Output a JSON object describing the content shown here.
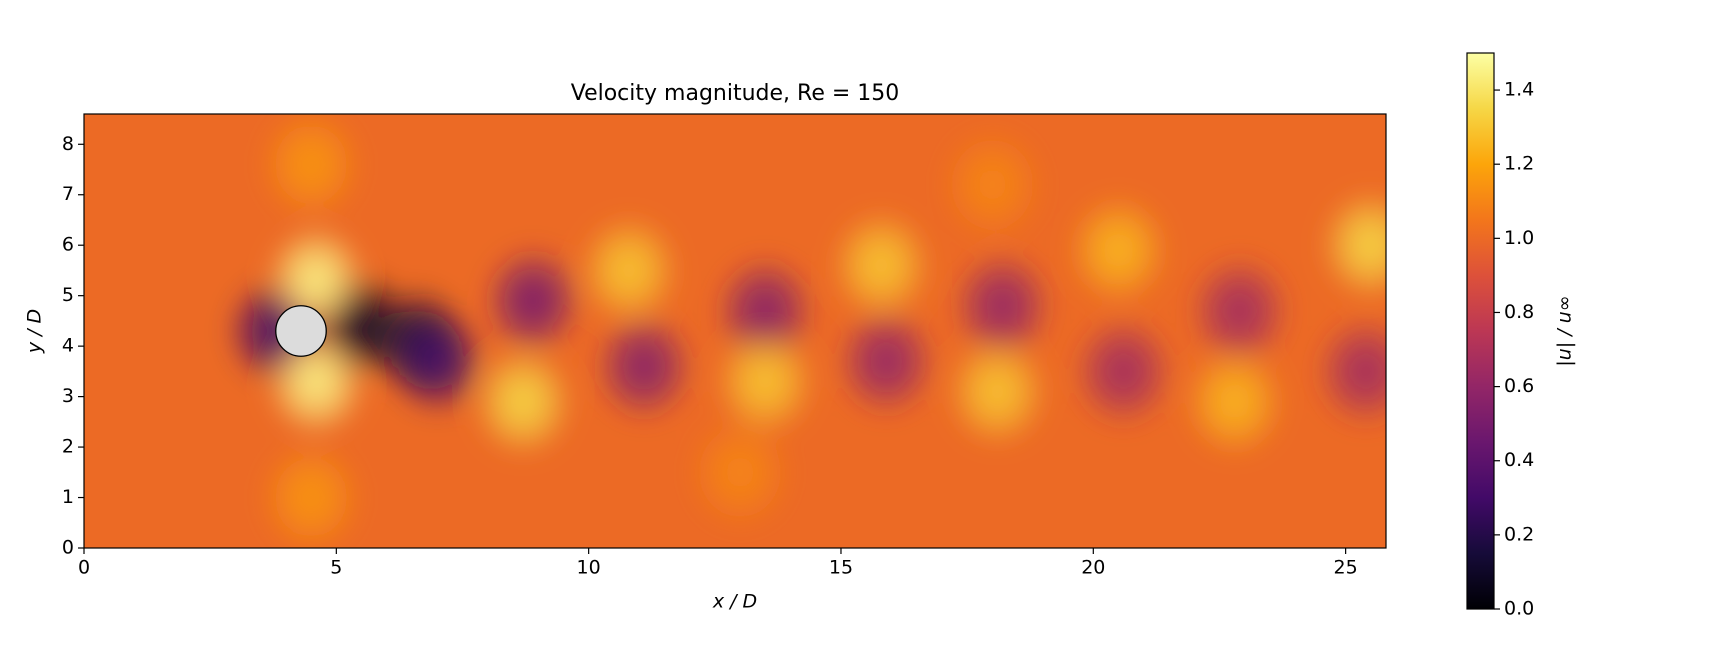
{
  "chart_data": {
    "type": "field",
    "title": "Velocity magnitude, Re = 150",
    "x_label": "x / D",
    "y_label": "y / D",
    "xlim": [
      0,
      25.8
    ],
    "ylim": [
      0,
      8.6
    ],
    "xticks": [
      0,
      5,
      10,
      15,
      20,
      25
    ],
    "yticks": [
      0,
      1,
      2,
      3,
      4,
      5,
      6,
      7,
      8
    ],
    "colormap": "inferno",
    "background_value": 1.0,
    "field": {
      "x": [
        3.8,
        5.5,
        6.6,
        7.0,
        8.9,
        11.1,
        13.5,
        15.9,
        18.2,
        20.6,
        22.9,
        25.4,
        4.6,
        4.6,
        8.7,
        10.8,
        13.5,
        15.8,
        18.1,
        20.5,
        22.8,
        25.5,
        4.5,
        4.5,
        13.0,
        18.0
      ],
      "y": [
        4.3,
        4.4,
        4.1,
        3.7,
        4.9,
        3.6,
        4.7,
        3.7,
        4.8,
        3.5,
        4.7,
        3.5,
        5.3,
        3.3,
        2.9,
        5.5,
        3.3,
        5.6,
        3.1,
        5.9,
        2.9,
        6.0,
        7.6,
        1.0,
        1.5,
        7.2
      ],
      "values": [
        0.3,
        0.1,
        0.15,
        0.3,
        0.5,
        0.55,
        0.55,
        0.6,
        0.6,
        0.65,
        0.65,
        0.65,
        1.45,
        1.45,
        1.35,
        1.3,
        1.3,
        1.3,
        1.3,
        1.25,
        1.25,
        1.35,
        1.15,
        1.15,
        1.1,
        1.1
      ]
    },
    "cylinder": {
      "x": 4.3,
      "y": 4.3,
      "diameter": 1,
      "color": "#dcdcdc"
    },
    "colorbar": {
      "label": "|u| / u∞",
      "lim": [
        0,
        1.5
      ],
      "ticks": [
        {
          "value": 0,
          "label": "0.0"
        },
        0.2,
        0.4,
        0.6,
        0.8,
        {
          "value": 1,
          "label": "1.0"
        },
        1.2,
        1.4
      ]
    }
  }
}
